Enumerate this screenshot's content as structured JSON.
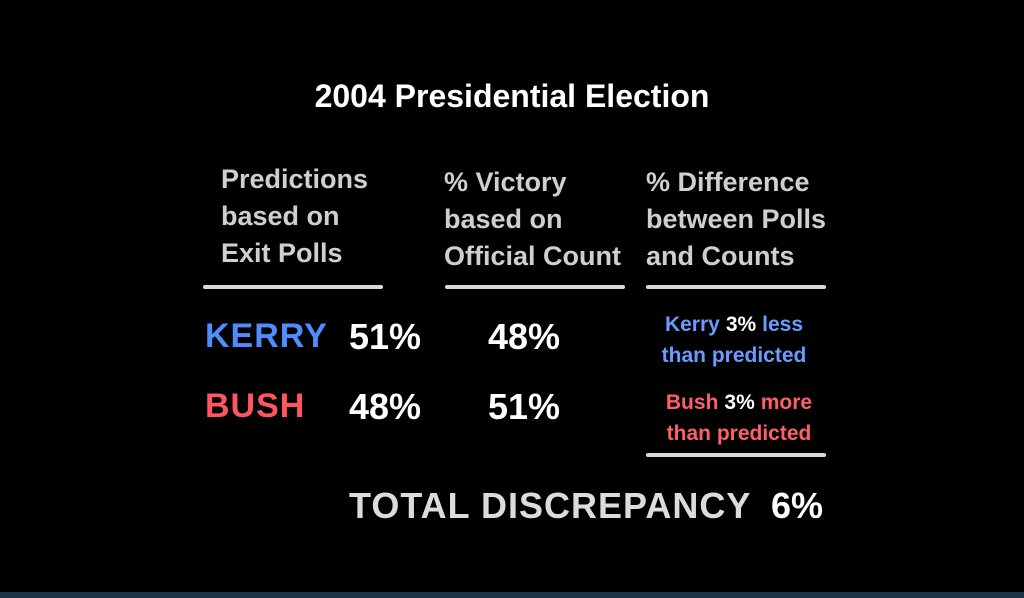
{
  "title": "2004 Presidential Election",
  "columns": {
    "exit_polls": [
      "Predictions",
      "based on",
      "Exit Polls"
    ],
    "official": [
      "% Victory",
      "based on",
      "Official Count"
    ],
    "difference": [
      "% Difference",
      "between Polls",
      "and Counts"
    ]
  },
  "rows": [
    {
      "candidate": "KERRY",
      "color": "#4f8dff",
      "exit_poll": "51%",
      "official": "48%",
      "diff_name": "Kerry",
      "diff_value": "3%",
      "diff_word": "less",
      "diff_tail": "than predicted"
    },
    {
      "candidate": "BUSH",
      "color": "#ff5560",
      "exit_poll": "48%",
      "official": "51%",
      "diff_name": "Bush",
      "diff_value": "3%",
      "diff_word": "more",
      "diff_tail": "than predicted"
    }
  ],
  "total": {
    "label": "TOTAL DISCREPANCY",
    "value": "6%"
  }
}
